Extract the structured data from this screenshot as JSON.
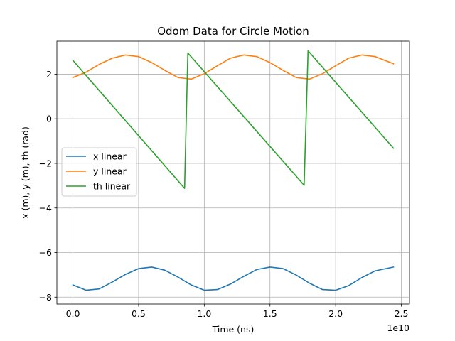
{
  "chart_data": {
    "type": "line",
    "title": "Odom Data for Circle Motion",
    "xlabel": "Time (ns)",
    "ylabel": "x (m), y (m), th (rad)",
    "x_offset_label": "1e10",
    "xlim": [
      -0.122,
      2.562
    ],
    "ylim": [
      -8.31,
      3.48
    ],
    "xticks": [
      0.0,
      0.5,
      1.0,
      1.5,
      2.0,
      2.5
    ],
    "xtick_labels": [
      "0.0",
      "0.5",
      "1.0",
      "1.5",
      "2.0",
      "2.5"
    ],
    "yticks": [
      -8,
      -6,
      -4,
      -2,
      0,
      2
    ],
    "ytick_labels": [
      "−8",
      "−6",
      "−4",
      "−2",
      "0",
      "2"
    ],
    "grid": true,
    "legend_position": "center-left",
    "series": [
      {
        "name": "x linear",
        "color": "#1f77b4",
        "x": [
          0.0,
          0.1,
          0.2,
          0.3,
          0.4,
          0.5,
          0.6,
          0.7,
          0.8,
          0.9,
          1.0,
          1.1,
          1.2,
          1.3,
          1.4,
          1.5,
          1.6,
          1.7,
          1.8,
          1.9,
          2.0,
          2.1,
          2.2,
          2.3,
          2.44
        ],
        "y": [
          -7.45,
          -7.69,
          -7.63,
          -7.32,
          -6.98,
          -6.72,
          -6.65,
          -6.79,
          -7.1,
          -7.45,
          -7.69,
          -7.66,
          -7.41,
          -7.07,
          -6.76,
          -6.65,
          -6.72,
          -7.01,
          -7.37,
          -7.66,
          -7.69,
          -7.48,
          -7.12,
          -6.82,
          -6.65
        ]
      },
      {
        "name": "y linear",
        "color": "#ff7f0e",
        "x": [
          0.0,
          0.1,
          0.2,
          0.3,
          0.4,
          0.5,
          0.6,
          0.7,
          0.8,
          0.9,
          1.0,
          1.1,
          1.2,
          1.3,
          1.4,
          1.5,
          1.6,
          1.7,
          1.8,
          1.9,
          2.0,
          2.1,
          2.2,
          2.3,
          2.44
        ],
        "y": [
          1.85,
          2.09,
          2.44,
          2.72,
          2.86,
          2.79,
          2.52,
          2.17,
          1.85,
          1.78,
          2.02,
          2.38,
          2.72,
          2.86,
          2.79,
          2.52,
          2.17,
          1.85,
          1.78,
          2.02,
          2.38,
          2.72,
          2.86,
          2.79,
          2.47
        ]
      },
      {
        "name": "th linear",
        "color": "#2ca02c",
        "x": [
          0.0,
          0.85,
          0.875,
          1.76,
          1.79,
          2.44
        ],
        "y": [
          2.62,
          -3.12,
          2.95,
          -2.98,
          3.05,
          -1.32
        ]
      }
    ]
  }
}
